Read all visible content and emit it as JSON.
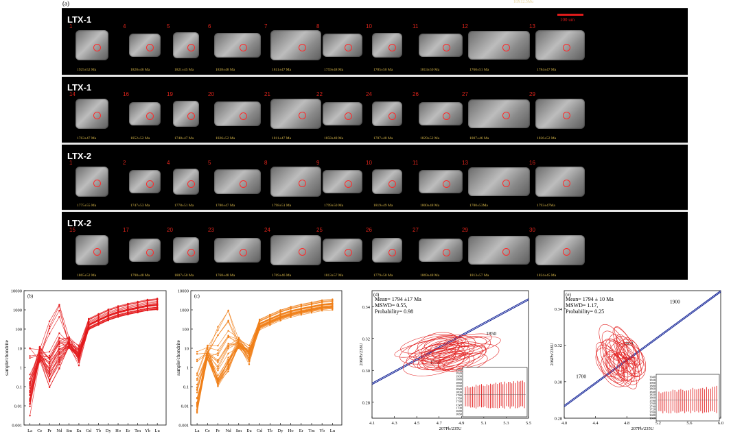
{
  "figure": {
    "panel_a_label": "(a)",
    "top_right_note": "18X12.5Mu",
    "scalebar_label": "100 um",
    "rows": [
      {
        "sample": "LTX-1",
        "grains": [
          {
            "n": "1",
            "age": "1925±52 Ma"
          },
          {
            "n": "4",
            "age": "1820±46 Ma"
          },
          {
            "n": "5",
            "age": "1821±45 Ma"
          },
          {
            "n": "6",
            "age": "1838±48 Ma"
          },
          {
            "n": "7",
            "age": "1811±47 Ma"
          },
          {
            "n": "8",
            "age": "1759±48 Ma"
          },
          {
            "n": "10",
            "age": "1785±50 Ma"
          },
          {
            "n": "11",
            "age": "1813±50 Ma"
          },
          {
            "n": "12",
            "age": "1760±51 Ma"
          },
          {
            "n": "13",
            "age": "1784±47 Ma"
          }
        ]
      },
      {
        "sample": "LTX-1",
        "grains": [
          {
            "n": "14",
            "age": "1763±47 Ma"
          },
          {
            "n": "16",
            "age": "1852±52 Ma"
          },
          {
            "n": "19",
            "age": "1748±47 Ma"
          },
          {
            "n": "20",
            "age": "1826±52 Ma"
          },
          {
            "n": "21",
            "age": "1811±47 Ma"
          },
          {
            "n": "22",
            "age": "1858±48 Ma"
          },
          {
            "n": "24",
            "age": "1787±48 Ma"
          },
          {
            "n": "26",
            "age": "1829±52 Ma"
          },
          {
            "n": "27",
            "age": "1807±46 Ma"
          },
          {
            "n": "29",
            "age": "1826±52 Ma"
          }
        ]
      },
      {
        "sample": "LTX-2",
        "grains": [
          {
            "n": "1",
            "age": "1775±55 Ma"
          },
          {
            "n": "2",
            "age": "1747±53 Ma"
          },
          {
            "n": "4",
            "age": "1778±51 Ma"
          },
          {
            "n": "5",
            "age": "1780±47 Ma"
          },
          {
            "n": "8",
            "age": "1798±51 Ma"
          },
          {
            "n": "9",
            "age": "1799±50 Ma"
          },
          {
            "n": "10",
            "age": "1819±49 Ma"
          },
          {
            "n": "11",
            "age": "1800±48 Ma"
          },
          {
            "n": "13",
            "age": "1780±53Ma"
          },
          {
            "n": "16",
            "age": "1793±47Ma"
          }
        ]
      },
      {
        "sample": "LTX-2",
        "grains": [
          {
            "n": "15",
            "age": "1865±52 Ma"
          },
          {
            "n": "17",
            "age": "1798±48 Ma"
          },
          {
            "n": "20",
            "age": "1807±50 Ma"
          },
          {
            "n": "23",
            "age": "1768±48 Ma"
          },
          {
            "n": "24",
            "age": "1769±46 Ma"
          },
          {
            "n": "25",
            "age": "1813±57 Ma"
          },
          {
            "n": "26",
            "age": "1779±50 Ma"
          },
          {
            "n": "27",
            "age": "1869±48 Ma"
          },
          {
            "n": "29",
            "age": "1813±57 Ma"
          },
          {
            "n": "30",
            "age": "1824±45 Ma"
          }
        ]
      }
    ]
  },
  "chart_data": [
    {
      "type": "line",
      "panel": "(b)",
      "ylabel": "sample/chondrite",
      "yscale": "log",
      "ylim": [
        0.001,
        10000
      ],
      "yticks": [
        "10000",
        "1000",
        "100",
        "10",
        "1",
        "0.1",
        "0.01",
        "0.001"
      ],
      "categories": [
        "La",
        "Ce",
        "Pr",
        "Nd",
        "Sm",
        "Eu",
        "Gd",
        "Tb",
        "Dy",
        "Ho",
        "Er",
        "Tm",
        "Yb",
        "Lu"
      ],
      "color": "#e31a1c",
      "series_count": 30
    },
    {
      "type": "line",
      "panel": "(c)",
      "ylabel": "sample/chondrite",
      "yscale": "log",
      "ylim": [
        0.001,
        10000
      ],
      "yticks": [
        "10000",
        "1000",
        "100",
        "10",
        "1",
        "0.1",
        "0.01",
        "0.001"
      ],
      "categories": [
        "La",
        "Ce",
        "Pr",
        "Nd",
        "Sm",
        "Eu",
        "Gd",
        "Tb",
        "Dy",
        "Ho",
        "Er",
        "Tm",
        "Yb",
        "Lu"
      ],
      "color": "#f07f18",
      "series_count": 30
    },
    {
      "type": "scatter",
      "panel": "(d)",
      "annotation": [
        "Mean= 1794 ±17 Ma",
        "MSWD= 0.55,",
        "Probability= 0.98"
      ],
      "xlabel": "207Pb/235U",
      "ylabel": "206Pb/238U",
      "xlim": [
        4.1,
        5.5
      ],
      "ylim": [
        0.27,
        0.35
      ],
      "xticks": [
        "4.1",
        "4.3",
        "4.5",
        "4.7",
        "4.9",
        "5.1",
        "5.3",
        "5.5"
      ],
      "yticks": [
        "0.28",
        "0.30",
        "0.32",
        "0.34"
      ],
      "concordia_labels": [
        "1750",
        "1850"
      ],
      "inset_yticks": [
        "1940",
        "1920",
        "1900",
        "1880",
        "1860",
        "1840",
        "1820",
        "1800",
        "1780",
        "1760",
        "1740",
        "1720",
        "1700",
        "1680",
        "1660"
      ]
    },
    {
      "type": "scatter",
      "panel": "(e)",
      "annotation": [
        "Mean= 1794 ± 10 Ma",
        "MSWD= 1.17,",
        "Probability= 0.25"
      ],
      "xlabel": "207Pb/235U",
      "ylabel": "206Pb/238U",
      "xlim": [
        4.0,
        6.0
      ],
      "ylim": [
        0.28,
        0.35
      ],
      "xticks": [
        "4.0",
        "4.4",
        "4.8",
        "5.2",
        "5.6",
        "6.0"
      ],
      "yticks": [
        "0.28",
        "0.30",
        "0.32",
        "0.34"
      ],
      "concordia_labels": [
        "1700",
        "1800",
        "1900"
      ],
      "inset_yticks": [
        "1940",
        "1920",
        "1900",
        "1880",
        "1860",
        "1840",
        "1820",
        "1800",
        "1780",
        "1760",
        "1740",
        "1720",
        "1700",
        "1680",
        "1660"
      ]
    }
  ]
}
